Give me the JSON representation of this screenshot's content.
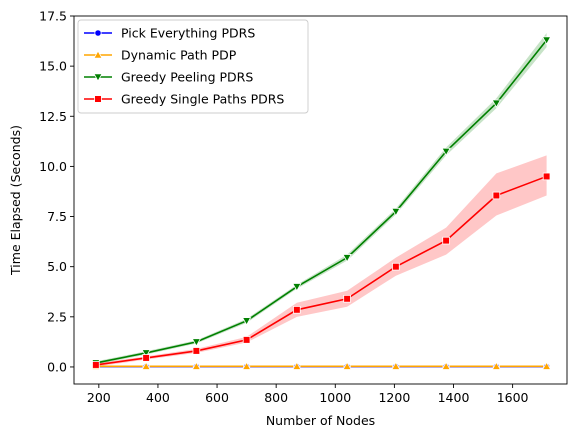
{
  "chart_data": {
    "type": "line",
    "title": "",
    "xlabel": "Number of Nodes",
    "ylabel": "Time Elapsed (Seconds)",
    "xlim": [
      116,
      1784
    ],
    "ylim": [
      -0.85,
      17.5
    ],
    "x_ticks": [
      200,
      400,
      600,
      800,
      1000,
      1200,
      1400,
      1600
    ],
    "y_ticks": [
      0.0,
      2.5,
      5.0,
      7.5,
      10.0,
      12.5,
      15.0,
      17.5
    ],
    "y_tick_labels": [
      "0.0",
      "2.5",
      "5.0",
      "7.5",
      "10.0",
      "12.5",
      "15.0",
      "17.5"
    ],
    "grid": false,
    "legend_position": "upper-left",
    "x": [
      190,
      360,
      530,
      700,
      870,
      1040,
      1205,
      1375,
      1545,
      1715
    ],
    "series": [
      {
        "name": "Pick Everything PDRS",
        "color": "#0000ff",
        "marker": "circle",
        "values": [
          0.02,
          0.02,
          0.02,
          0.02,
          0.02,
          0.02,
          0.02,
          0.02,
          0.02,
          0.02
        ],
        "band_lower": [
          0.01,
          0.01,
          0.01,
          0.01,
          0.01,
          0.01,
          0.01,
          0.01,
          0.01,
          0.01
        ],
        "band_upper": [
          0.03,
          0.03,
          0.03,
          0.03,
          0.03,
          0.03,
          0.03,
          0.03,
          0.03,
          0.03
        ]
      },
      {
        "name": "Dynamic Path PDP",
        "color": "#ffa500",
        "marker": "triangle-up",
        "values": [
          0.03,
          0.03,
          0.03,
          0.03,
          0.03,
          0.03,
          0.03,
          0.03,
          0.03,
          0.03
        ],
        "band_lower": [
          0.02,
          0.02,
          0.02,
          0.02,
          0.02,
          0.02,
          0.02,
          0.02,
          0.02,
          0.02
        ],
        "band_upper": [
          0.04,
          0.04,
          0.04,
          0.04,
          0.04,
          0.04,
          0.04,
          0.04,
          0.04,
          0.04
        ]
      },
      {
        "name": "Greedy Peeling PDRS",
        "color": "#008000",
        "marker": "triangle-down",
        "values": [
          0.2,
          0.7,
          1.25,
          2.3,
          4.0,
          5.45,
          7.75,
          10.75,
          13.15,
          16.3
        ],
        "band_lower": [
          0.12,
          0.62,
          1.17,
          2.2,
          3.9,
          5.3,
          7.6,
          10.55,
          12.9,
          15.95
        ],
        "band_upper": [
          0.28,
          0.78,
          1.33,
          2.4,
          4.1,
          5.6,
          7.9,
          10.95,
          13.4,
          16.65
        ]
      },
      {
        "name": "Greedy Single Paths PDRS",
        "color": "#ff0000",
        "marker": "square",
        "values": [
          0.1,
          0.45,
          0.8,
          1.35,
          2.85,
          3.4,
          5.0,
          6.3,
          8.55,
          9.5
        ],
        "band_lower": [
          0.02,
          0.37,
          0.7,
          1.22,
          2.5,
          3.0,
          4.55,
          5.6,
          7.55,
          8.55
        ],
        "band_upper": [
          0.18,
          0.53,
          0.9,
          1.5,
          3.2,
          3.8,
          5.45,
          6.95,
          9.65,
          10.55
        ]
      }
    ]
  }
}
